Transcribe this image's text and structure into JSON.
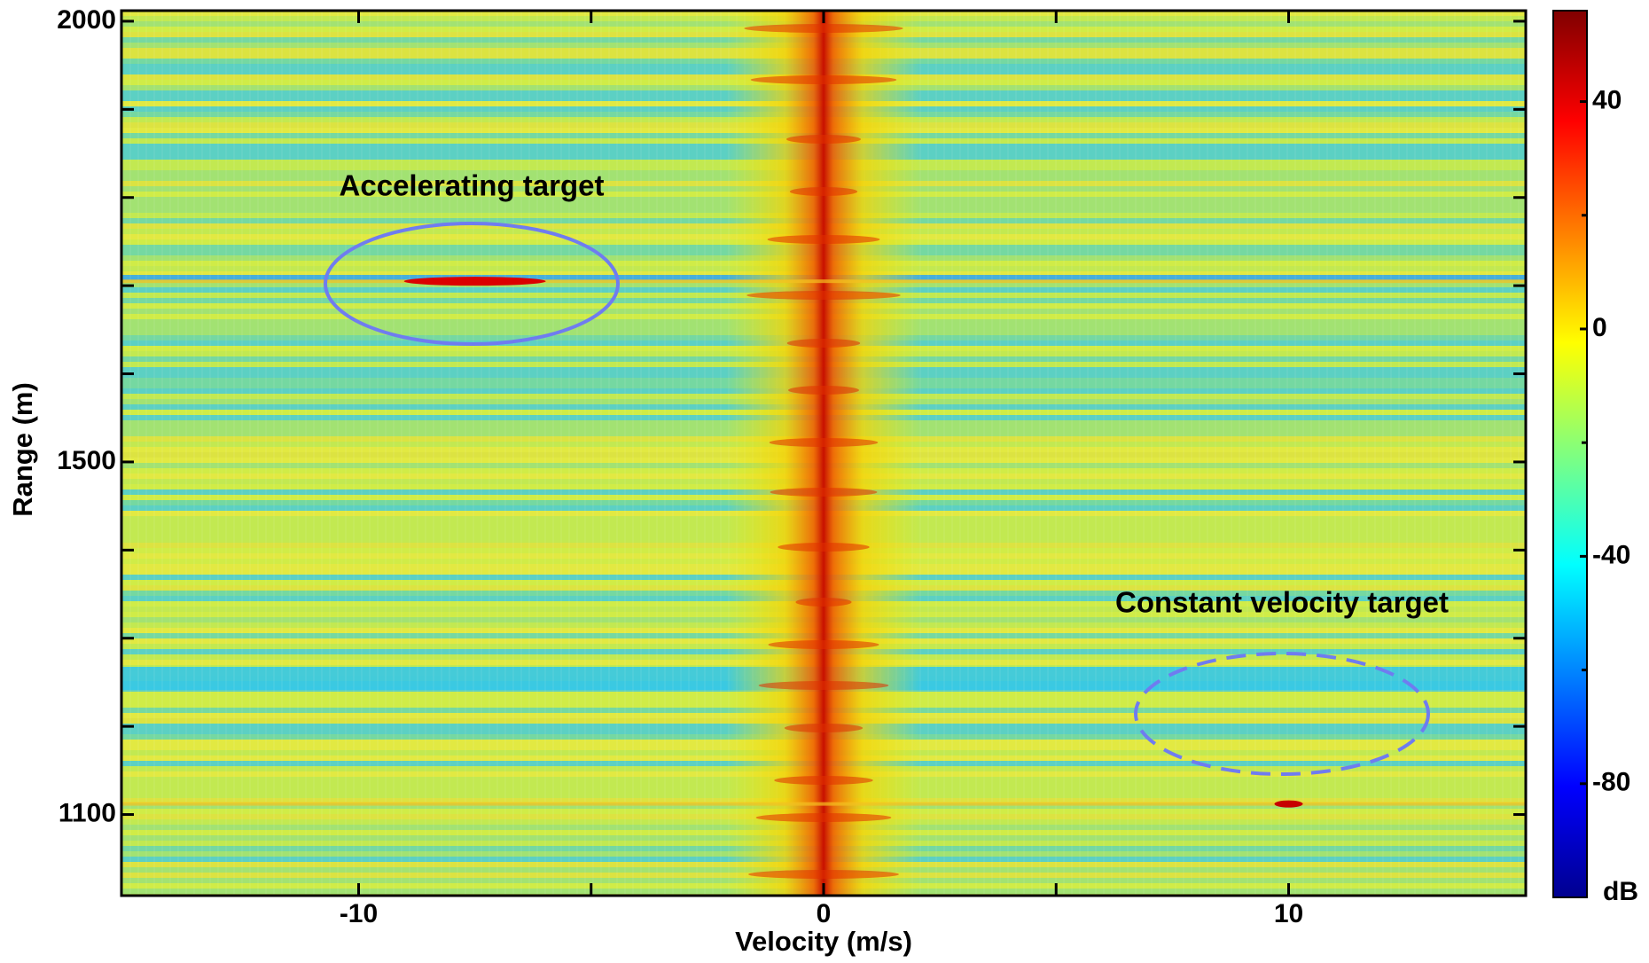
{
  "chart_data": {
    "type": "heatmap",
    "x_label": "Velocity (m/s)",
    "y_label": "Range (m)",
    "xlim": [
      -15.1,
      15.1
    ],
    "xticks": [
      -10,
      0,
      10
    ],
    "xminorticks": [
      -5,
      5
    ],
    "ylim": [
      1008,
      2012
    ],
    "yticks": [
      1100,
      1500,
      2000
    ],
    "yminorticks": [
      1200,
      1300,
      1400,
      1600,
      1700,
      1800,
      1900
    ],
    "colormap": "jet",
    "colorbar": {
      "label": "dB",
      "clim": [
        -100,
        56
      ],
      "ticks": [
        40,
        0,
        -40,
        -80
      ],
      "minorticks": [
        20,
        -20,
        -60
      ]
    },
    "targets": [
      {
        "x": -7.5,
        "y": 1705,
        "value": 42
      },
      {
        "x": 10,
        "y": 1112,
        "value": 45
      }
    ],
    "annotations": [
      "Accelerating target",
      "Constant velocity target"
    ]
  }
}
